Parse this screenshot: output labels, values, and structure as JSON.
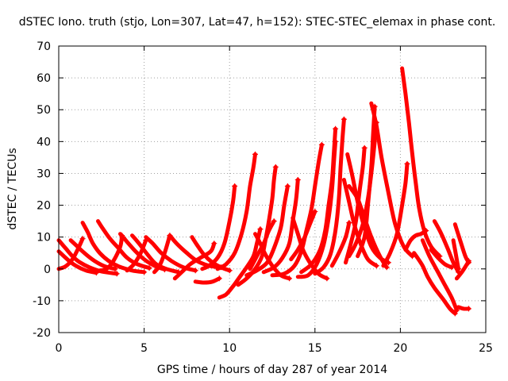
{
  "chart_data": {
    "type": "scatter",
    "title": "dSTEC Iono. truth (stjo, Lon=307, Lat=47, h=152): STEC-STEC_elemax in phase cont.",
    "xlabel": "GPS time / hours of day 287 of year 2014",
    "ylabel": "dSTEC  / TECUs",
    "xlim": [
      0,
      25
    ],
    "ylim": [
      -20,
      70
    ],
    "xticks": [
      0,
      5,
      10,
      15,
      20,
      25
    ],
    "yticks": [
      -20,
      -10,
      0,
      10,
      20,
      30,
      40,
      50,
      60,
      70
    ],
    "grid": true,
    "marker": "plus",
    "color": "#ff0000",
    "arcs": [
      [
        [
          0.0,
          5.5
        ],
        [
          0.5,
          3.0
        ],
        [
          1.0,
          1.0
        ],
        [
          1.6,
          -0.5
        ],
        [
          2.2,
          -1.2
        ]
      ],
      [
        [
          0.0,
          9.0
        ],
        [
          0.4,
          6.5
        ],
        [
          0.8,
          4.0
        ],
        [
          1.2,
          2.2
        ],
        [
          1.8,
          0.5
        ],
        [
          2.5,
          -0.8
        ],
        [
          3.4,
          -1.5
        ]
      ],
      [
        [
          0.0,
          0.0
        ],
        [
          0.4,
          0.8
        ],
        [
          0.8,
          3.0
        ],
        [
          1.1,
          6.0
        ],
        [
          1.4,
          9.5
        ]
      ],
      [
        [
          0.7,
          9.0
        ],
        [
          1.0,
          7.5
        ],
        [
          1.5,
          5.0
        ],
        [
          2.1,
          2.5
        ],
        [
          2.7,
          0.8
        ],
        [
          3.3,
          0.0
        ]
      ],
      [
        [
          1.4,
          14.5
        ],
        [
          1.7,
          11.5
        ],
        [
          2.0,
          8.0
        ],
        [
          2.4,
          5.0
        ],
        [
          2.9,
          2.6
        ],
        [
          3.5,
          0.8
        ],
        [
          4.3,
          -0.5
        ],
        [
          5.0,
          -1.0
        ]
      ],
      [
        [
          2.3,
          15.0
        ],
        [
          2.6,
          12.5
        ],
        [
          3.0,
          9.5
        ],
        [
          3.5,
          6.5
        ],
        [
          4.0,
          3.5
        ],
        [
          4.6,
          1.5
        ],
        [
          5.3,
          0.3
        ]
      ],
      [
        [
          2.4,
          -0.5
        ],
        [
          2.8,
          0.0
        ],
        [
          3.2,
          2.5
        ],
        [
          3.6,
          7.0
        ],
        [
          3.7,
          10.5
        ]
      ],
      [
        [
          3.6,
          11.0
        ],
        [
          4.0,
          8.5
        ],
        [
          4.5,
          5.5
        ],
        [
          5.0,
          3.0
        ],
        [
          5.6,
          1.0
        ],
        [
          6.2,
          -0.2
        ]
      ],
      [
        [
          4.0,
          -0.5
        ],
        [
          4.4,
          1.5
        ],
        [
          4.8,
          5.0
        ],
        [
          5.1,
          9.0
        ]
      ],
      [
        [
          4.3,
          10.5
        ],
        [
          4.7,
          8.0
        ],
        [
          5.2,
          4.5
        ],
        [
          5.7,
          1.5
        ],
        [
          6.3,
          0.0
        ],
        [
          7.0,
          -1.0
        ]
      ],
      [
        [
          5.1,
          10.0
        ],
        [
          5.5,
          8.0
        ],
        [
          6.0,
          5.0
        ],
        [
          6.6,
          2.5
        ],
        [
          7.3,
          0.5
        ],
        [
          8.0,
          -0.5
        ]
      ],
      [
        [
          5.6,
          -1.0
        ],
        [
          5.9,
          1.0
        ],
        [
          6.2,
          5.0
        ],
        [
          6.5,
          10.5
        ]
      ],
      [
        [
          6.5,
          10.5
        ],
        [
          6.9,
          8.0
        ],
        [
          7.5,
          5.0
        ],
        [
          8.1,
          2.5
        ],
        [
          8.8,
          1.0
        ],
        [
          9.5,
          0.5
        ]
      ],
      [
        [
          6.8,
          -3.0
        ],
        [
          7.2,
          -1.0
        ],
        [
          7.7,
          1.5
        ],
        [
          8.3,
          3.5
        ],
        [
          8.9,
          5.5
        ],
        [
          9.1,
          8.0
        ]
      ],
      [
        [
          7.8,
          10.0
        ],
        [
          8.1,
          7.5
        ],
        [
          8.5,
          4.5
        ],
        [
          9.0,
          2.0
        ],
        [
          9.5,
          0.5
        ],
        [
          10.0,
          -0.5
        ]
      ],
      [
        [
          8.0,
          -4.0
        ],
        [
          8.5,
          -4.3
        ],
        [
          9.0,
          -4.0
        ],
        [
          9.4,
          -3.0
        ]
      ],
      [
        [
          8.4,
          0.0
        ],
        [
          8.8,
          1.0
        ],
        [
          9.3,
          3.5
        ],
        [
          9.7,
          8.0
        ],
        [
          10.0,
          15.0
        ],
        [
          10.2,
          21.0
        ],
        [
          10.3,
          26.0
        ]
      ],
      [
        [
          9.3,
          0.0
        ],
        [
          9.8,
          1.5
        ],
        [
          10.3,
          5.0
        ],
        [
          10.7,
          11.0
        ],
        [
          11.0,
          18.0
        ],
        [
          11.2,
          26.0
        ],
        [
          11.4,
          32.0
        ],
        [
          11.5,
          36.0
        ]
      ],
      [
        [
          9.4,
          -9.0
        ],
        [
          9.8,
          -8.0
        ],
        [
          10.2,
          -5.5
        ],
        [
          10.6,
          -2.5
        ],
        [
          11.0,
          0.5
        ],
        [
          11.4,
          4.0
        ],
        [
          11.6,
          8.0
        ],
        [
          11.8,
          12.5
        ]
      ],
      [
        [
          10.5,
          -5.0
        ],
        [
          11.0,
          -3.0
        ],
        [
          11.5,
          0.0
        ],
        [
          11.9,
          4.0
        ],
        [
          12.1,
          9.0
        ],
        [
          12.3,
          15.0
        ],
        [
          12.5,
          22.0
        ],
        [
          12.6,
          28.0
        ],
        [
          12.7,
          32.0
        ]
      ],
      [
        [
          11.0,
          -2.0
        ],
        [
          11.6,
          -0.5
        ],
        [
          12.2,
          2.0
        ],
        [
          12.6,
          6.5
        ],
        [
          13.0,
          13.0
        ],
        [
          13.2,
          20.0
        ],
        [
          13.4,
          26.0
        ]
      ],
      [
        [
          11.2,
          0.0
        ],
        [
          11.6,
          4.0
        ],
        [
          12.0,
          8.0
        ],
        [
          12.3,
          12.0
        ],
        [
          12.6,
          15.0
        ]
      ],
      [
        [
          11.5,
          11.0
        ],
        [
          11.8,
          8.0
        ],
        [
          12.1,
          4.5
        ],
        [
          12.5,
          1.0
        ],
        [
          13.0,
          -2.0
        ],
        [
          13.5,
          -3.0
        ]
      ],
      [
        [
          12.0,
          -1.0
        ],
        [
          12.6,
          0.5
        ],
        [
          13.1,
          3.5
        ],
        [
          13.5,
          8.0
        ],
        [
          13.7,
          15.0
        ],
        [
          13.9,
          22.0
        ],
        [
          14.0,
          28.0
        ]
      ],
      [
        [
          12.5,
          -2.0
        ],
        [
          13.2,
          -1.5
        ],
        [
          13.8,
          1.0
        ],
        [
          14.2,
          5.5
        ],
        [
          14.5,
          12.0
        ],
        [
          14.8,
          19.0
        ],
        [
          15.0,
          26.0
        ],
        [
          15.2,
          33.0
        ],
        [
          15.4,
          39.0
        ]
      ],
      [
        [
          13.6,
          3.0
        ],
        [
          14.0,
          6.0
        ],
        [
          14.4,
          10.0
        ],
        [
          14.7,
          14.0
        ],
        [
          15.0,
          18.0
        ]
      ],
      [
        [
          13.7,
          16.0
        ],
        [
          14.0,
          11.0
        ],
        [
          14.3,
          6.0
        ],
        [
          14.7,
          2.0
        ],
        [
          15.2,
          -1.5
        ],
        [
          15.7,
          -3.0
        ]
      ],
      [
        [
          14.0,
          -2.5
        ],
        [
          14.6,
          -2.0
        ],
        [
          15.1,
          1.5
        ],
        [
          15.5,
          7.5
        ],
        [
          15.8,
          16.0
        ],
        [
          16.0,
          25.0
        ],
        [
          16.1,
          33.0
        ],
        [
          16.2,
          40.0
        ]
      ],
      [
        [
          14.2,
          -1.0
        ],
        [
          14.8,
          1.5
        ],
        [
          15.3,
          6.0
        ],
        [
          15.6,
          12.0
        ],
        [
          15.8,
          20.0
        ],
        [
          16.0,
          28.0
        ],
        [
          16.1,
          36.0
        ],
        [
          16.2,
          44.0
        ]
      ],
      [
        [
          15.0,
          -1.5
        ],
        [
          15.5,
          0.5
        ],
        [
          15.9,
          4.5
        ],
        [
          16.2,
          12.0
        ],
        [
          16.4,
          22.0
        ],
        [
          16.5,
          32.0
        ],
        [
          16.6,
          40.0
        ],
        [
          16.7,
          47.0
        ]
      ],
      [
        [
          16.0,
          1.0
        ],
        [
          16.4,
          5.0
        ],
        [
          16.8,
          10.0
        ],
        [
          17.0,
          14.5
        ]
      ],
      [
        [
          16.7,
          28.0
        ],
        [
          17.0,
          21.0
        ],
        [
          17.3,
          14.0
        ],
        [
          17.7,
          7.5
        ],
        [
          18.1,
          3.0
        ],
        [
          18.6,
          1.0
        ]
      ],
      [
        [
          16.9,
          36.0
        ],
        [
          17.2,
          29.0
        ],
        [
          17.5,
          21.0
        ],
        [
          17.9,
          13.0
        ],
        [
          18.3,
          7.0
        ],
        [
          18.8,
          3.5
        ],
        [
          19.3,
          2.0
        ]
      ],
      [
        [
          17.0,
          26.0
        ],
        [
          17.5,
          22.0
        ],
        [
          17.9,
          16.0
        ],
        [
          18.3,
          10.0
        ],
        [
          18.8,
          4.0
        ],
        [
          19.2,
          0.5
        ]
      ],
      [
        [
          16.8,
          2.0
        ],
        [
          17.1,
          8.0
        ],
        [
          17.4,
          15.0
        ],
        [
          17.6,
          24.0
        ],
        [
          17.8,
          32.0
        ],
        [
          17.9,
          38.0
        ]
      ],
      [
        [
          17.0,
          4.0
        ],
        [
          17.4,
          8.0
        ],
        [
          17.8,
          14.0
        ],
        [
          18.1,
          22.0
        ],
        [
          18.3,
          30.0
        ],
        [
          18.5,
          40.0
        ],
        [
          18.6,
          46.0
        ]
      ],
      [
        [
          17.5,
          4.0
        ],
        [
          17.9,
          10.0
        ],
        [
          18.1,
          20.0
        ],
        [
          18.3,
          32.0
        ],
        [
          18.4,
          42.0
        ],
        [
          18.5,
          51.0
        ]
      ],
      [
        [
          18.3,
          52.0
        ],
        [
          18.6,
          45.0
        ],
        [
          18.9,
          35.0
        ],
        [
          19.3,
          24.0
        ],
        [
          19.7,
          14.0
        ],
        [
          20.2,
          7.0
        ],
        [
          20.7,
          4.0
        ]
      ],
      [
        [
          19.0,
          1.0
        ],
        [
          19.4,
          5.0
        ],
        [
          19.8,
          11.0
        ],
        [
          20.1,
          20.0
        ],
        [
          20.3,
          27.0
        ],
        [
          20.4,
          33.0
        ]
      ],
      [
        [
          20.1,
          63.0
        ],
        [
          20.3,
          55.0
        ],
        [
          20.5,
          46.0
        ],
        [
          20.7,
          36.0
        ],
        [
          20.9,
          27.0
        ],
        [
          21.1,
          19.0
        ],
        [
          21.4,
          12.0
        ],
        [
          21.8,
          7.0
        ],
        [
          22.3,
          4.0
        ]
      ],
      [
        [
          20.3,
          6.0
        ],
        [
          20.6,
          9.0
        ],
        [
          20.9,
          10.5
        ],
        [
          21.2,
          11.0
        ],
        [
          21.5,
          12.0
        ]
      ],
      [
        [
          20.8,
          5.0
        ],
        [
          21.0,
          3.5
        ],
        [
          21.3,
          1.0
        ],
        [
          21.6,
          -2.5
        ],
        [
          22.0,
          -6.0
        ],
        [
          22.5,
          -9.5
        ],
        [
          22.9,
          -12.5
        ],
        [
          23.2,
          -14.0
        ]
      ],
      [
        [
          21.8,
          6.0
        ],
        [
          22.2,
          3.5
        ],
        [
          22.6,
          1.5
        ],
        [
          23.0,
          0.5
        ]
      ],
      [
        [
          21.3,
          9.0
        ],
        [
          21.7,
          4.0
        ],
        [
          22.1,
          0.0
        ],
        [
          22.5,
          -4.0
        ],
        [
          23.0,
          -9.0
        ],
        [
          23.3,
          -13.0
        ]
      ],
      [
        [
          22.0,
          15.0
        ],
        [
          22.4,
          11.0
        ],
        [
          22.8,
          6.0
        ],
        [
          23.1,
          2.0
        ],
        [
          23.4,
          -1.0
        ]
      ],
      [
        [
          23.2,
          14.0
        ],
        [
          23.5,
          9.0
        ],
        [
          23.8,
          4.0
        ],
        [
          24.0,
          2.0
        ]
      ],
      [
        [
          23.1,
          9.0
        ],
        [
          23.2,
          6.0
        ],
        [
          23.3,
          3.0
        ],
        [
          23.4,
          0.0
        ]
      ],
      [
        [
          23.4,
          -12.0
        ],
        [
          23.7,
          -12.5
        ],
        [
          24.0,
          -12.5
        ]
      ],
      [
        [
          23.3,
          -3.0
        ],
        [
          23.6,
          -1.0
        ],
        [
          23.9,
          1.5
        ],
        [
          24.0,
          2.5
        ]
      ]
    ]
  }
}
